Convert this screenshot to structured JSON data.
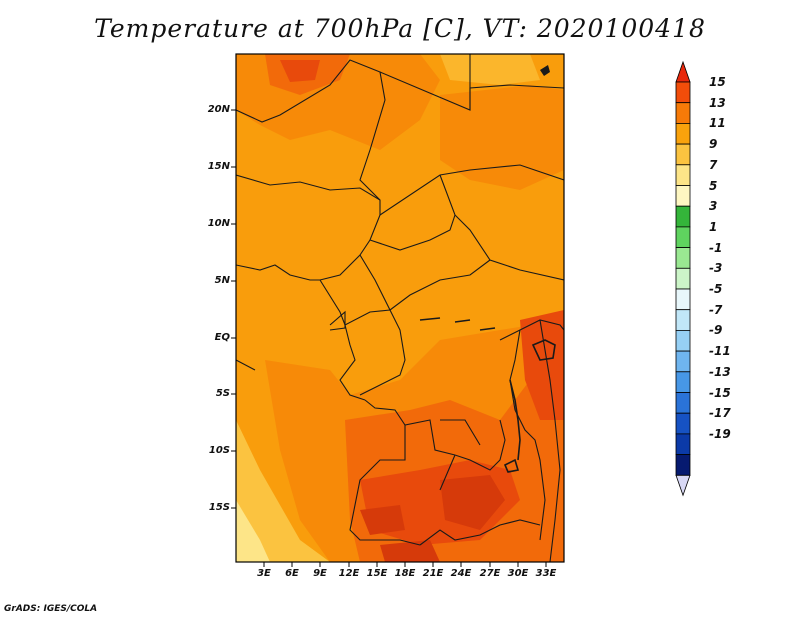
{
  "title": "Temperature at 700hPa [C], VT: 2020100418",
  "credit": "GrADS: IGES/COLA",
  "map": {
    "lat_labels": [
      "20N",
      "15N",
      "10N",
      "5N",
      "EQ",
      "5S",
      "10S",
      "15S"
    ],
    "lon_labels": [
      "3E",
      "6E",
      "9E",
      "12E",
      "15E",
      "18E",
      "21E",
      "24E",
      "27E",
      "30E",
      "33E"
    ]
  },
  "colorbar": {
    "labels": [
      "15",
      "13",
      "11",
      "9",
      "7",
      "5",
      "3",
      "1",
      "-1",
      "-3",
      "-5",
      "-7",
      "-9",
      "-11",
      "-13",
      "-15",
      "-17",
      "-19"
    ],
    "colors": [
      "#e8280c",
      "#f24d0a",
      "#f77a08",
      "#f9a20c",
      "#fbc340",
      "#fde588",
      "#fef7c2",
      "#34b53a",
      "#5fd35f",
      "#9ae892",
      "#ccf5c8",
      "#e8f7fb",
      "#c1e7f8",
      "#96d0f5",
      "#6fb5ef",
      "#4797e6",
      "#2a73d8",
      "#1652c3",
      "#0b3aa8",
      "#061a70",
      "#d8d8f5"
    ]
  }
}
